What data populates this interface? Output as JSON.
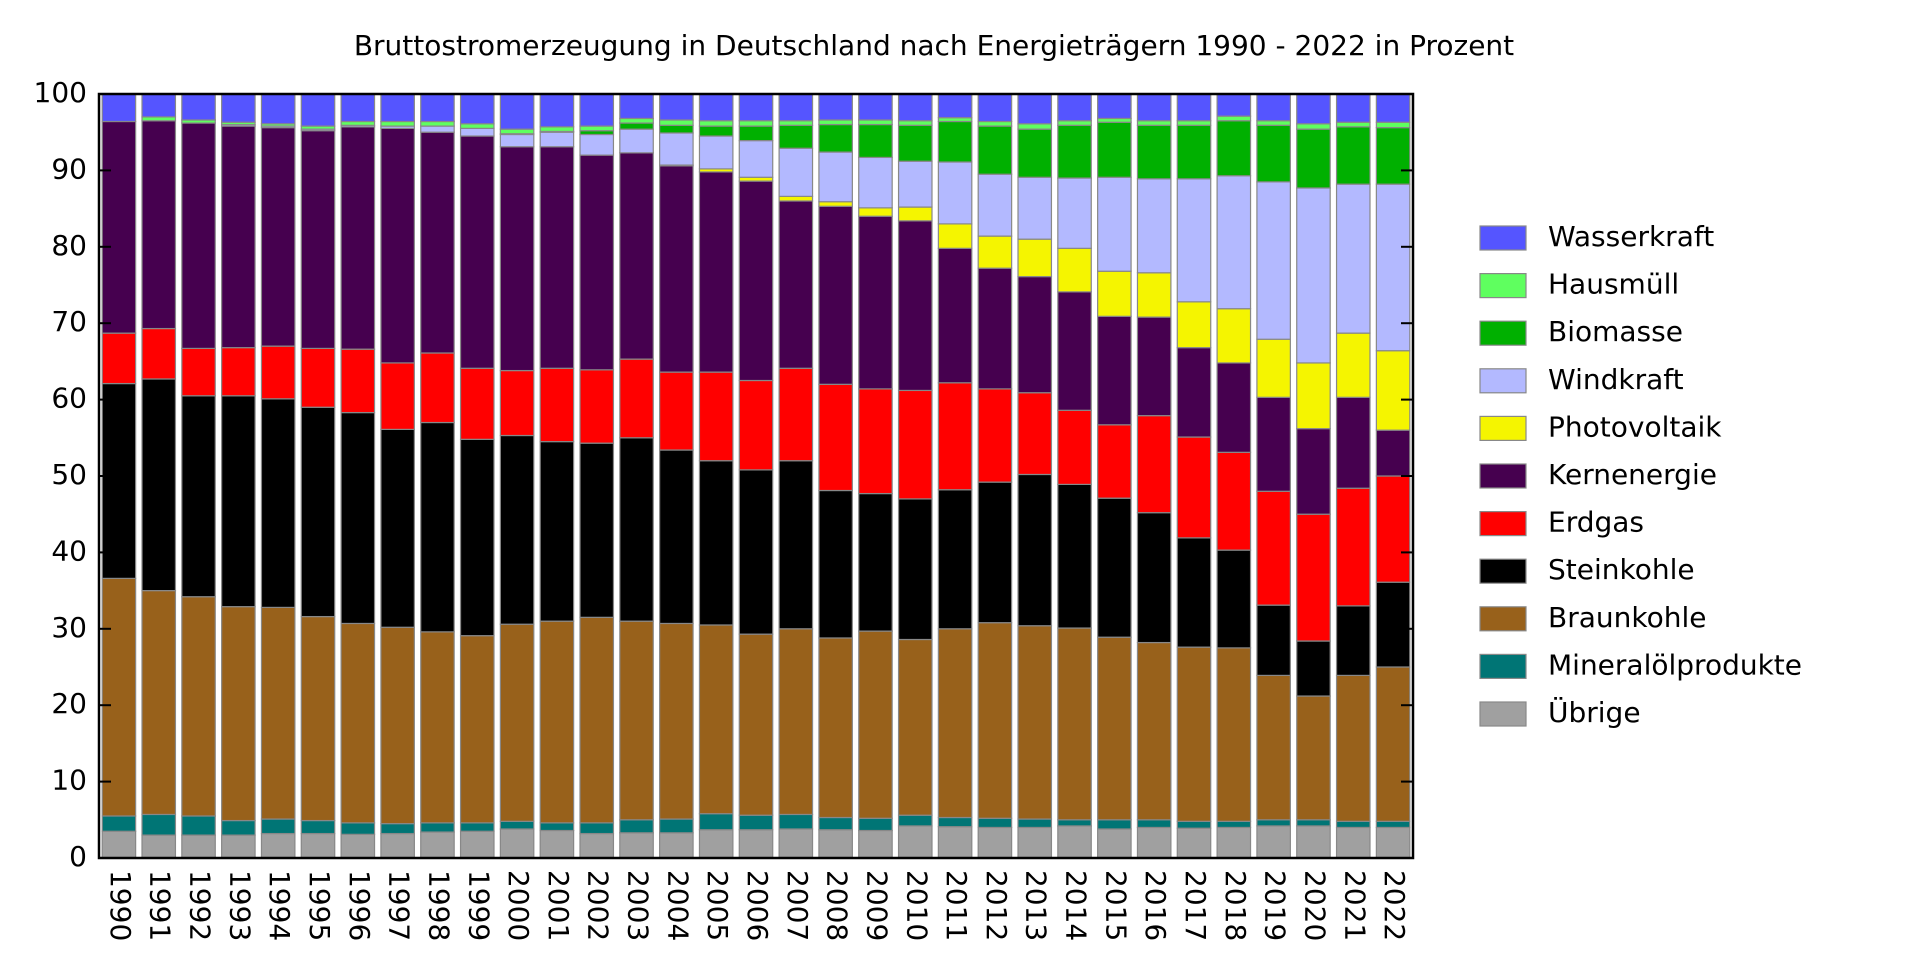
{
  "chart_data": {
    "type": "stacked_bar",
    "title": "Bruttostromerzeugung in Deutschland nach Energieträgern 1990 - 2022 in Prozent",
    "categories": [
      "1990",
      "1991",
      "1992",
      "1993",
      "1994",
      "1995",
      "1996",
      "1997",
      "1998",
      "1999",
      "2000",
      "2001",
      "2002",
      "2003",
      "2004",
      "2005",
      "2006",
      "2007",
      "2008",
      "2009",
      "2010",
      "2011",
      "2012",
      "2013",
      "2014",
      "2015",
      "2016",
      "2017",
      "2018",
      "2019",
      "2020",
      "2021",
      "2022"
    ],
    "ylim": [
      0,
      100
    ],
    "yticks": [
      0,
      10,
      20,
      30,
      40,
      50,
      60,
      70,
      80,
      90,
      100
    ],
    "grid": false,
    "legend": "right",
    "series": [
      {
        "name": "Wasserkraft",
        "color": "#5555ff",
        "values": [
          3.6,
          3.0,
          3.4,
          3.7,
          3.9,
          4.2,
          3.6,
          3.6,
          3.6,
          3.9,
          4.6,
          4.3,
          4.2,
          3.2,
          3.4,
          3.5,
          3.5,
          3.5,
          3.4,
          3.4,
          3.5,
          3.1,
          3.6,
          3.9,
          3.5,
          3.2,
          3.5,
          3.5,
          2.9,
          3.5,
          3.9,
          3.7,
          3.7
        ]
      },
      {
        "name": "Hausmüll",
        "color": "#5fff5f",
        "values": [
          0,
          0.5,
          0.4,
          0.3,
          0.3,
          0.4,
          0.5,
          0.6,
          0.6,
          0.6,
          0.6,
          0.6,
          0.6,
          0.6,
          0.7,
          0.7,
          0.7,
          0.6,
          0.6,
          0.6,
          0.6,
          0.5,
          0.6,
          0.7,
          0.6,
          0.5,
          0.6,
          0.6,
          0.6,
          0.6,
          0.7,
          0.6,
          0.7
        ]
      },
      {
        "name": "Biomasse",
        "color": "#00b000",
        "values": [
          0,
          0,
          0,
          0,
          0,
          0,
          0,
          0,
          0,
          0,
          0.1,
          0.1,
          0.5,
          0.8,
          1.0,
          1.3,
          1.9,
          3.0,
          3.6,
          4.3,
          4.7,
          5.3,
          6.3,
          6.3,
          6.9,
          7.2,
          7.0,
          7.0,
          7.2,
          7.4,
          7.7,
          7.5,
          7.4
        ]
      },
      {
        "name": "Windkraft",
        "color": "#b3b9ff",
        "values": [
          0,
          0,
          0,
          0.2,
          0.2,
          0.2,
          0.2,
          0.3,
          0.8,
          1.0,
          1.6,
          1.9,
          2.7,
          3.1,
          4.2,
          4.3,
          4.8,
          6.3,
          6.5,
          6.6,
          6.0,
          8.1,
          8.1,
          8.1,
          9.2,
          12.3,
          12.3,
          16.1,
          17.4,
          20.6,
          22.9,
          19.5,
          21.8
        ]
      },
      {
        "name": "Photovoltaik",
        "color": "#f5f500",
        "values": [
          0,
          0,
          0,
          0,
          0,
          0,
          0,
          0,
          0,
          0,
          0,
          0,
          0,
          0,
          0.1,
          0.4,
          0.5,
          0.6,
          0.6,
          1.1,
          1.8,
          3.2,
          4.2,
          4.9,
          5.7,
          5.9,
          5.8,
          6.0,
          7.1,
          7.6,
          8.6,
          8.4,
          10.4
        ]
      },
      {
        "name": "Kernenergie",
        "color": "#46004f",
        "values": [
          27.7,
          27.2,
          29.5,
          29.0,
          28.6,
          28.5,
          29.1,
          30.7,
          28.9,
          30.4,
          29.3,
          29.0,
          28.1,
          27.0,
          27.0,
          26.2,
          26.1,
          21.9,
          23.3,
          22.6,
          22.2,
          17.6,
          15.8,
          15.2,
          15.5,
          14.2,
          12.9,
          11.7,
          11.7,
          12.3,
          11.2,
          11.9,
          6.0
        ]
      },
      {
        "name": "Erdgas",
        "color": "#ff0000",
        "values": [
          6.6,
          6.6,
          6.2,
          6.3,
          6.9,
          7.7,
          8.3,
          8.7,
          9.1,
          9.3,
          8.5,
          9.6,
          9.6,
          10.3,
          10.2,
          11.6,
          11.7,
          12.1,
          13.9,
          13.7,
          14.2,
          14.0,
          12.2,
          10.7,
          9.7,
          9.6,
          12.7,
          13.2,
          12.8,
          14.9,
          16.6,
          15.4,
          13.9
        ]
      },
      {
        "name": "Steinkohle",
        "color": "#000000",
        "values": [
          25.5,
          27.7,
          26.3,
          27.6,
          27.3,
          27.4,
          27.6,
          25.9,
          27.4,
          25.7,
          24.7,
          23.5,
          22.8,
          24.0,
          22.7,
          21.5,
          21.5,
          22.0,
          19.3,
          18.0,
          18.4,
          18.2,
          18.4,
          19.8,
          18.8,
          18.2,
          17.0,
          14.3,
          12.8,
          9.2,
          7.2,
          9.1,
          11.1
        ]
      },
      {
        "name": "Braunkohle",
        "color": "#98611b",
        "values": [
          31.1,
          29.3,
          28.7,
          28.0,
          27.7,
          26.7,
          26.1,
          25.7,
          25.0,
          24.5,
          25.8,
          26.4,
          26.9,
          26.0,
          25.6,
          24.7,
          23.7,
          24.3,
          23.5,
          24.5,
          23.0,
          24.7,
          25.6,
          25.3,
          25.1,
          23.9,
          23.2,
          22.8,
          22.7,
          18.9,
          16.2,
          19.1,
          20.2
        ]
      },
      {
        "name": "Mineralölprodukte",
        "color": "#007575",
        "values": [
          2.0,
          2.7,
          2.5,
          1.9,
          1.9,
          1.7,
          1.5,
          1.3,
          1.2,
          1.1,
          1.0,
          1.0,
          1.4,
          1.7,
          1.8,
          2.1,
          1.9,
          1.9,
          1.6,
          1.6,
          1.4,
          1.2,
          1.2,
          1.1,
          0.8,
          1.2,
          1.0,
          0.9,
          0.8,
          0.8,
          0.8,
          0.8,
          0.8
        ]
      },
      {
        "name": "Übrige",
        "color": "#a0a0a0",
        "values": [
          3.5,
          3.0,
          3.0,
          3.0,
          3.2,
          3.2,
          3.1,
          3.2,
          3.4,
          3.5,
          3.8,
          3.6,
          3.2,
          3.3,
          3.3,
          3.7,
          3.7,
          3.8,
          3.7,
          3.6,
          4.2,
          4.1,
          4.0,
          4.0,
          4.2,
          3.8,
          4.0,
          3.9,
          4.0,
          4.2,
          4.2,
          4.0,
          4.0
        ]
      }
    ]
  }
}
